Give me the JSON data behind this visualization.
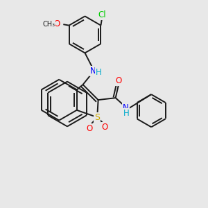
{
  "bg_color": "#e8e8e8",
  "bond_color": "#1a1a1a",
  "bond_width": 1.4,
  "atom_colors": {
    "N": "#0000ff",
    "O": "#ff0000",
    "S": "#ccaa00",
    "Cl": "#00cc00",
    "H": "#00aacc",
    "C": "#1a1a1a"
  },
  "font_size": 8.5,
  "fig_size": [
    3.0,
    3.0
  ],
  "dpi": 100
}
